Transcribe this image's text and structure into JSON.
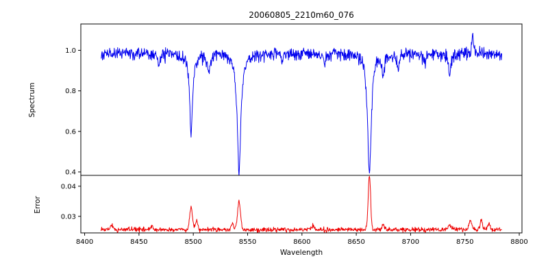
{
  "figure": {
    "background": "#ffffff"
  },
  "chart_data": [
    {
      "type": "line",
      "title": "20060805_2210m60_076",
      "ylabel": "Spectrum",
      "xlabel": "",
      "x_range": [
        8415,
        8784
      ],
      "ylim": [
        0.383,
        1.13
      ],
      "grid": false,
      "legend": "none",
      "yticks": [
        {
          "v": 0.4,
          "label": "0.4"
        },
        {
          "v": 0.6,
          "label": "0.6"
        },
        {
          "v": 0.8,
          "label": "0.8"
        },
        {
          "v": 1.0,
          "label": "1.0"
        }
      ],
      "series": [
        {
          "name": "spectrum",
          "color": "#0000ee",
          "model": {
            "continuum": 0.985,
            "noise_sd": 0.016,
            "lines": [
              {
                "center": 8498.0,
                "depth": 0.4,
                "width": 1.6
              },
              {
                "center": 8542.1,
                "depth": 0.59,
                "width": 2.0
              },
              {
                "center": 8662.1,
                "depth": 0.59,
                "width": 2.0
              },
              {
                "center": 8468.4,
                "depth": 0.06,
                "width": 1.2
              },
              {
                "center": 8514.1,
                "depth": 0.1,
                "width": 1.4
              },
              {
                "center": 8582.0,
                "depth": 0.05,
                "width": 1.0
              },
              {
                "center": 8621.0,
                "depth": 0.05,
                "width": 1.0
              },
              {
                "center": 8674.8,
                "depth": 0.1,
                "width": 1.2
              },
              {
                "center": 8688.6,
                "depth": 0.08,
                "width": 1.2
              },
              {
                "center": 8713.0,
                "depth": 0.05,
                "width": 1.0
              },
              {
                "center": 8736.0,
                "depth": 0.1,
                "width": 1.3
              },
              {
                "center": 8757.0,
                "depth": -0.1,
                "width": 0.7
              }
            ]
          }
        }
      ]
    },
    {
      "type": "line",
      "title": "",
      "ylabel": "Error",
      "xlabel": "Wavelength",
      "x_range": [
        8415,
        8784
      ],
      "ylim": [
        0.0245,
        0.0436
      ],
      "grid": false,
      "legend": "none",
      "yticks": [
        {
          "v": 0.03,
          "label": "0.03"
        },
        {
          "v": 0.04,
          "label": "0.04"
        }
      ],
      "xticks": [
        {
          "v": 8400,
          "label": "8400"
        },
        {
          "v": 8450,
          "label": "8450"
        },
        {
          "v": 8500,
          "label": "8500"
        },
        {
          "v": 8550,
          "label": "8550"
        },
        {
          "v": 8600,
          "label": "8600"
        },
        {
          "v": 8650,
          "label": "8650"
        },
        {
          "v": 8700,
          "label": "8700"
        },
        {
          "v": 8750,
          "label": "8750"
        },
        {
          "v": 8800,
          "label": "8800"
        }
      ],
      "series": [
        {
          "name": "error",
          "color": "#ee0000",
          "model": {
            "baseline": 0.0256,
            "noise_sd": 0.00038,
            "peaks": [
              {
                "center": 8425.0,
                "height": 0.0016,
                "width": 1.2
              },
              {
                "center": 8462.0,
                "height": 0.0012,
                "width": 1.0
              },
              {
                "center": 8498.0,
                "height": 0.0072,
                "width": 1.3
              },
              {
                "center": 8503.0,
                "height": 0.0028,
                "width": 1.0
              },
              {
                "center": 8536.0,
                "height": 0.0018,
                "width": 1.0
              },
              {
                "center": 8542.1,
                "height": 0.009,
                "width": 1.4
              },
              {
                "center": 8610.0,
                "height": 0.0012,
                "width": 1.0
              },
              {
                "center": 8662.1,
                "height": 0.018,
                "width": 1.1
              },
              {
                "center": 8674.8,
                "height": 0.0016,
                "width": 1.0
              },
              {
                "center": 8736.0,
                "height": 0.0014,
                "width": 1.0
              },
              {
                "center": 8755.0,
                "height": 0.003,
                "width": 1.2
              },
              {
                "center": 8765.0,
                "height": 0.0034,
                "width": 1.0
              },
              {
                "center": 8772.0,
                "height": 0.0018,
                "width": 1.0
              }
            ]
          }
        }
      ]
    }
  ]
}
